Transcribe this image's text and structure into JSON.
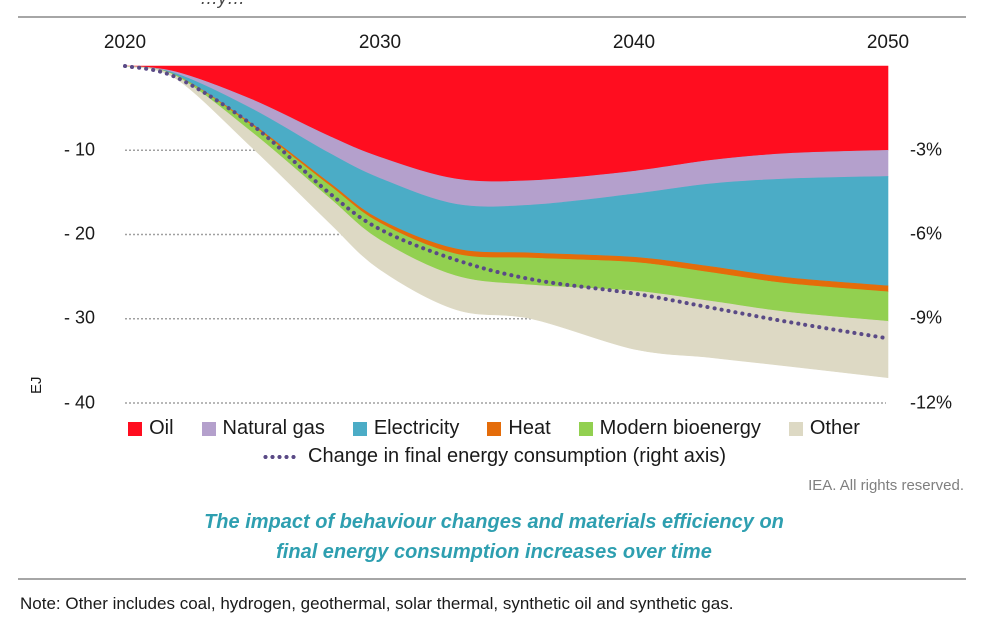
{
  "chart_data": {
    "type": "area",
    "stacking": "stacked-negative",
    "x": [
      2020,
      2022,
      2025,
      2028,
      2030,
      2033,
      2036,
      2040,
      2043,
      2046,
      2050
    ],
    "xticks": [
      "2020",
      "2030",
      "2040",
      "2050"
    ],
    "ylabel": "EJ",
    "ylim": [
      -40,
      0
    ],
    "yticks": [
      "- 10",
      "- 20",
      "- 30",
      "- 40"
    ],
    "y2ticks": [
      "-3%",
      "-6%",
      "-9%",
      "-12%"
    ],
    "y2lim": [
      -12,
      0
    ],
    "series": [
      {
        "name": "Oil",
        "color": "#ff0d1f",
        "values": [
          0,
          -0.7,
          -4.0,
          -8.3,
          -10.8,
          -13.4,
          -13.6,
          -12.5,
          -11.2,
          -10.4,
          -10.0
        ]
      },
      {
        "name": "Natural gas",
        "color": "#b4a0cc",
        "values": [
          0,
          -0.2,
          -1.1,
          -2.0,
          -2.5,
          -3.0,
          -2.9,
          -2.7,
          -2.8,
          -3.0,
          -3.1
        ]
      },
      {
        "name": "Electricity",
        "color": "#4bacc6",
        "values": [
          0,
          -0.2,
          -1.8,
          -3.5,
          -4.9,
          -5.3,
          -5.7,
          -7.5,
          -9.8,
          -11.7,
          -13.0
        ]
      },
      {
        "name": "Heat",
        "color": "#e46c0a",
        "values": [
          0,
          0.0,
          -0.2,
          -0.3,
          -0.4,
          -0.6,
          -0.6,
          -0.6,
          -0.7,
          -0.7,
          -0.7
        ]
      },
      {
        "name": "Modern bioenergy",
        "color": "#92d050",
        "values": [
          0,
          -0.1,
          -0.8,
          -1.5,
          -2.0,
          -2.6,
          -3.2,
          -3.4,
          -3.4,
          -3.4,
          -3.5
        ]
      },
      {
        "name": "Other",
        "color": "#ddd9c4",
        "values": [
          0,
          -0.3,
          -1.8,
          -2.9,
          -3.5,
          -4.0,
          -4.0,
          -6.9,
          -6.7,
          -6.4,
          -6.7
        ]
      }
    ],
    "line_series": {
      "name": "Change in final energy consumption (right axis)",
      "color": "#5a4a86",
      "axis": "right",
      "values": [
        0,
        -0.4,
        -2.1,
        -4.5,
        -5.8,
        -6.9,
        -7.6,
        -8.1,
        -8.6,
        -9.1,
        -9.7
      ]
    }
  },
  "page": {
    "title_fragment": "…y…",
    "unit_label": "EJ",
    "legend": [
      "Oil",
      "Natural gas",
      "Electricity",
      "Heat",
      "Modern bioenergy",
      "Other"
    ],
    "line_legend": "Change in final energy consumption (right axis)",
    "credit": "IEA. All rights reserved.",
    "caption_line1": "The impact of behaviour changes and materials efficiency on",
    "caption_line2": "final energy consumption increases over time",
    "note": "Note: Other includes coal, hydrogen, geothermal, solar thermal, synthetic oil and synthetic gas."
  }
}
